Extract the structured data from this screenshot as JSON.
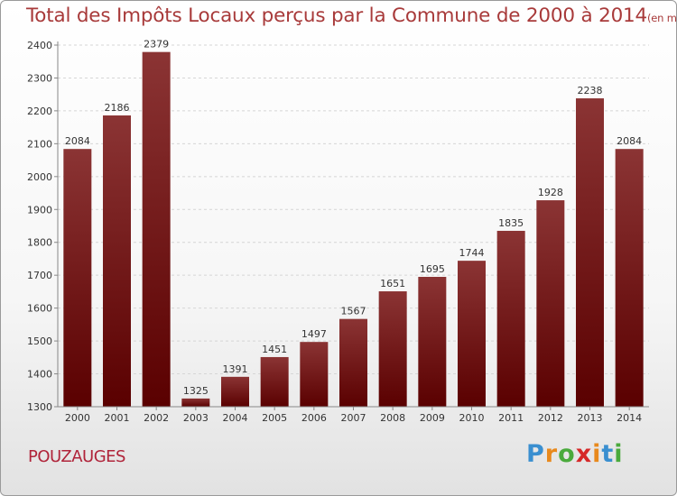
{
  "title": {
    "main": "Total des Impôts Locaux perçus par la Commune de 2000 à 2014",
    "unit": "(en milliers d'€)"
  },
  "commune": "POUZAUGES",
  "logo": {
    "letters": [
      "P",
      "r",
      "o",
      "x",
      "i",
      "t",
      "i"
    ],
    "colors": [
      "#3a8fd0",
      "#e8891c",
      "#4aaa3c",
      "#d62828",
      "#e8891c",
      "#3a8fd0",
      "#4aaa3c"
    ]
  },
  "colors": {
    "bar_top": "#8b3434",
    "bar_bottom": "#5a0000",
    "grid": "#d6d6d6",
    "axis": "#888888"
  },
  "chart_data": {
    "type": "bar",
    "categories": [
      "2000",
      "2001",
      "2002",
      "2003",
      "2004",
      "2005",
      "2006",
      "2007",
      "2008",
      "2009",
      "2010",
      "2011",
      "2012",
      "2013",
      "2014"
    ],
    "values": [
      2084,
      2186,
      2379,
      1325,
      1391,
      1451,
      1497,
      1567,
      1651,
      1695,
      1744,
      1835,
      1928,
      2238,
      2084
    ],
    "ylim": [
      1300,
      2400
    ],
    "yticks": [
      1300,
      1400,
      1500,
      1600,
      1700,
      1800,
      1900,
      2000,
      2100,
      2200,
      2300,
      2400
    ],
    "grid": true,
    "data_labels": true
  }
}
